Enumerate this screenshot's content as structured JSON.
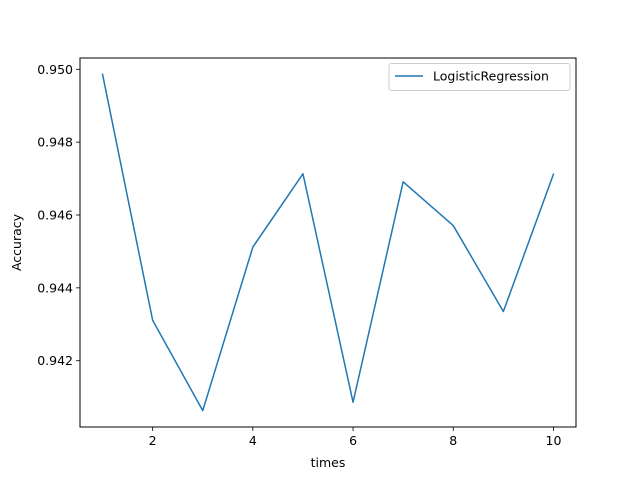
{
  "chart_data": {
    "type": "line",
    "title": "",
    "xlabel": "times",
    "ylabel": "Accuracy",
    "xlim": [
      0.55,
      10.45
    ],
    "ylim": [
      0.94018,
      0.95031
    ],
    "xticks": [
      2,
      4,
      6,
      8,
      10
    ],
    "xtick_labels": [
      "2",
      "4",
      "6",
      "8",
      "10"
    ],
    "yticks": [
      0.942,
      0.944,
      0.946,
      0.948,
      0.95
    ],
    "ytick_labels": [
      "0.942",
      "0.944",
      "0.946",
      "0.948",
      "0.950"
    ],
    "grid": false,
    "legend": {
      "placement": "top-right"
    },
    "series": [
      {
        "name": "LogisticRegression",
        "color": "#1f77b4",
        "x": [
          1,
          2,
          3,
          4,
          5,
          6,
          7,
          8,
          9,
          10
        ],
        "y": [
          0.94986,
          0.94311,
          0.94063,
          0.94512,
          0.94713,
          0.94086,
          0.94691,
          0.94571,
          0.94335,
          0.94712
        ]
      }
    ]
  }
}
